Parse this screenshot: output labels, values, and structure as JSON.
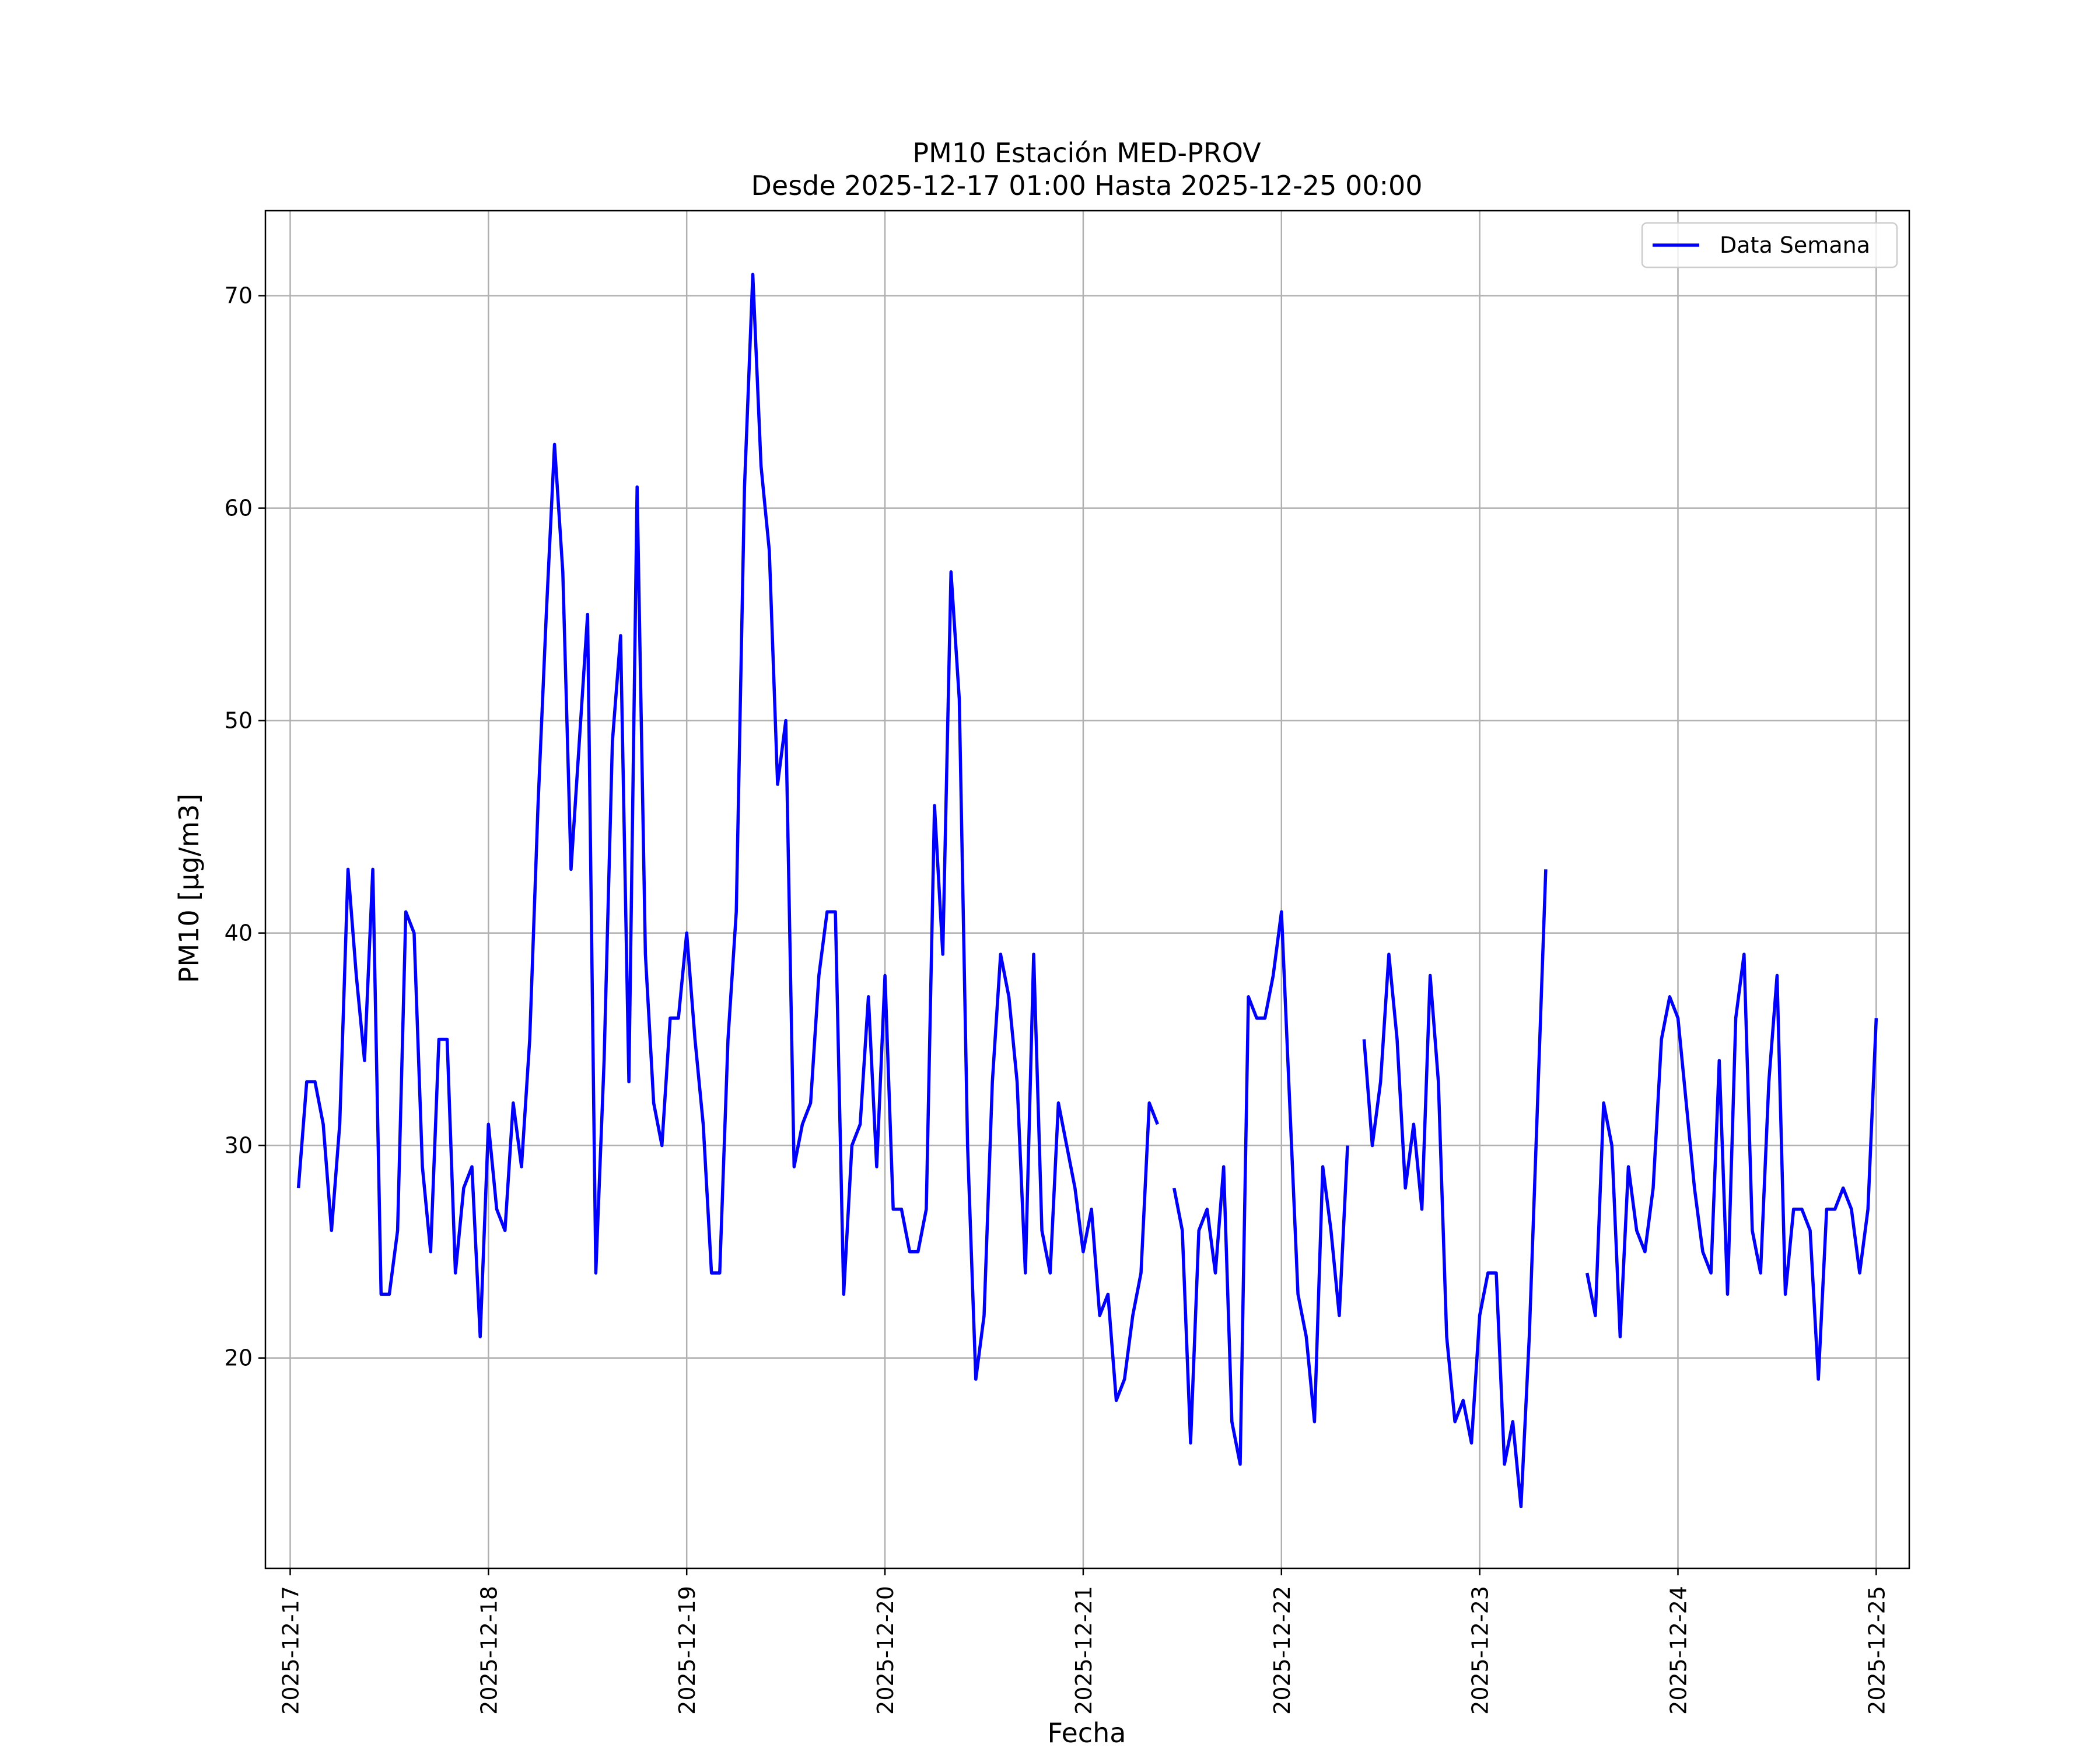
{
  "chart_data": {
    "type": "line",
    "title": "PM10 Estación MED-PROV",
    "subtitle": "Desde 2025-12-17 01:00 Hasta 2025-12-25 00:00",
    "xlabel": "Fecha",
    "ylabel": "PM10 [μg/m3]",
    "xlim": [
      "2025-12-16 21:00",
      "2025-12-25 04:00"
    ],
    "ylim": [
      10.1,
      74.0
    ],
    "x_ticks": [
      "2025-12-17",
      "2025-12-18",
      "2025-12-19",
      "2025-12-20",
      "2025-12-21",
      "2025-12-22",
      "2025-12-23",
      "2025-12-24",
      "2025-12-25"
    ],
    "y_ticks": [
      20,
      30,
      40,
      50,
      60,
      70
    ],
    "grid": true,
    "legend": {
      "position": "upper-right",
      "entries": [
        "Data Semana"
      ]
    },
    "x_start": "2025-12-17 01:00",
    "x_step_hours": 1,
    "series": [
      {
        "name": "Data Semana",
        "color": "#0000ff",
        "values": [
          28,
          33,
          33,
          31,
          26,
          31,
          43,
          38,
          34,
          43,
          23,
          23,
          26,
          41,
          40,
          29,
          25,
          35,
          35,
          24,
          28,
          29,
          21,
          31,
          27,
          26,
          32,
          29,
          35,
          46,
          55,
          63,
          57,
          43,
          49,
          55,
          24,
          34,
          49,
          54,
          33,
          61,
          39,
          32,
          30,
          36,
          36,
          40,
          35,
          31,
          24,
          24,
          35,
          41,
          61,
          71,
          62,
          58,
          47,
          50,
          29,
          31,
          32,
          38,
          41,
          41,
          23,
          30,
          31,
          37,
          29,
          38,
          27,
          27,
          25,
          25,
          27,
          46,
          39,
          57,
          51,
          30,
          19,
          22,
          33,
          39,
          37,
          33,
          24,
          39,
          26,
          24,
          32,
          30,
          28,
          25,
          27,
          22,
          23,
          18,
          19,
          22,
          24,
          32,
          31,
          null,
          28,
          26,
          16,
          26,
          27,
          24,
          29,
          17,
          15,
          37,
          36,
          36,
          38,
          41,
          32,
          23,
          21,
          17,
          29,
          26,
          22,
          30,
          null,
          35,
          30,
          33,
          39,
          35,
          28,
          31,
          27,
          38,
          33,
          21,
          17,
          18,
          16,
          22,
          24,
          24,
          15,
          17,
          13,
          21,
          32,
          43,
          null,
          null,
          null,
          null,
          24,
          22,
          32,
          30,
          21,
          29,
          26,
          25,
          28,
          35,
          37,
          36,
          32,
          28,
          25,
          24,
          34,
          23,
          36,
          39,
          26,
          24,
          33,
          38,
          23,
          27,
          27,
          26,
          19,
          27,
          27,
          28,
          27,
          24,
          27,
          36
        ]
      }
    ]
  }
}
